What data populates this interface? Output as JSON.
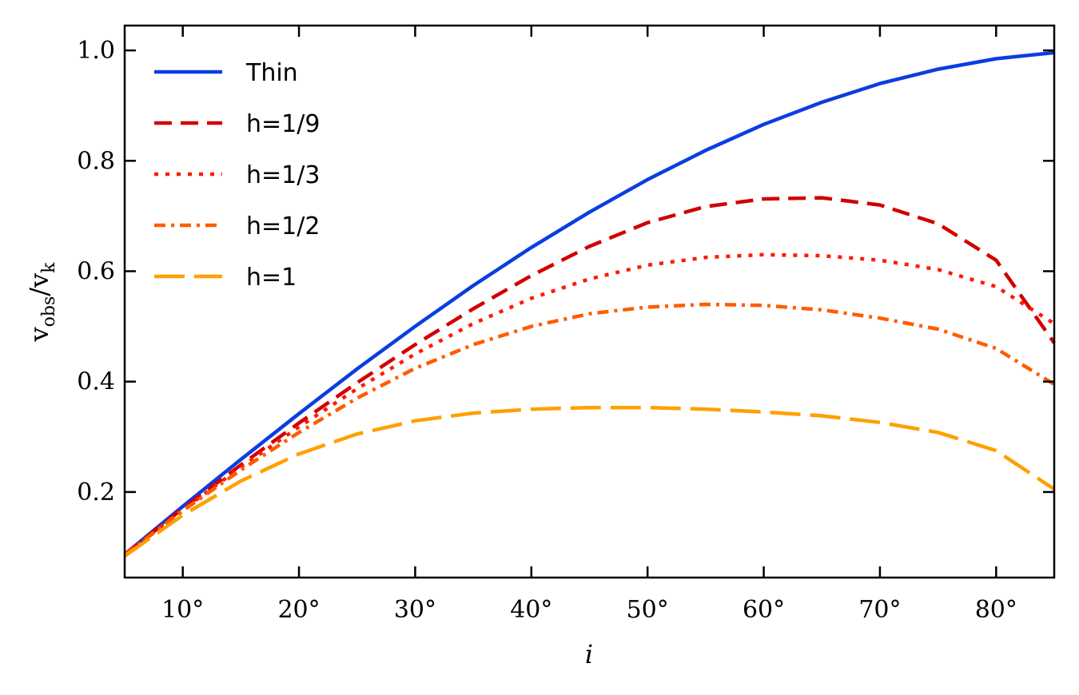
{
  "chart_data": {
    "type": "line",
    "title": "",
    "xlabel": "i",
    "ylabel_main": "v",
    "ylabel_sub1": "obs",
    "ylabel_slash": "/",
    "ylabel_sub2": "k",
    "xlim": [
      5,
      85
    ],
    "ylim": [
      0.045,
      1.045
    ],
    "x_ticks": [
      10,
      20,
      30,
      40,
      50,
      60,
      70,
      80
    ],
    "x_tick_labels": [
      "10°",
      "20°",
      "30°",
      "40°",
      "50°",
      "60°",
      "70°",
      "80°"
    ],
    "y_ticks": [
      0.2,
      0.4,
      0.6,
      0.8,
      1.0
    ],
    "y_tick_labels": [
      "0.2",
      "0.4",
      "0.6",
      "0.8",
      "1.0"
    ],
    "legend_position": "top-left",
    "grid": false,
    "x": [
      5,
      10,
      15,
      20,
      25,
      30,
      35,
      40,
      45,
      50,
      55,
      60,
      65,
      70,
      75,
      80,
      85
    ],
    "series": [
      {
        "name": "Thin",
        "color": "#0a3ee0",
        "style": "solid",
        "values": [
          0.087,
          0.174,
          0.259,
          0.342,
          0.423,
          0.5,
          0.574,
          0.643,
          0.707,
          0.766,
          0.819,
          0.866,
          0.906,
          0.94,
          0.966,
          0.985,
          0.996
        ]
      },
      {
        "name": "h=1/9",
        "color": "#d10000",
        "style": "dashed",
        "values": [
          0.087,
          0.17,
          0.249,
          0.325,
          0.398,
          0.467,
          0.532,
          0.592,
          0.645,
          0.688,
          0.717,
          0.731,
          0.733,
          0.72,
          0.686,
          0.62,
          0.47
        ]
      },
      {
        "name": "h=1/3",
        "color": "#ff1a00",
        "style": "dotted",
        "values": [
          0.086,
          0.168,
          0.245,
          0.318,
          0.387,
          0.45,
          0.505,
          0.551,
          0.586,
          0.611,
          0.625,
          0.63,
          0.628,
          0.62,
          0.603,
          0.572,
          0.505
        ]
      },
      {
        "name": "h=1/2",
        "color": "#ff5c00",
        "style": "dashdot",
        "values": [
          0.086,
          0.166,
          0.24,
          0.308,
          0.37,
          0.424,
          0.467,
          0.5,
          0.523,
          0.535,
          0.54,
          0.538,
          0.53,
          0.515,
          0.495,
          0.46,
          0.395
        ]
      },
      {
        "name": "h=1",
        "color": "#ffa000",
        "style": "longdash",
        "values": [
          0.084,
          0.158,
          0.22,
          0.269,
          0.305,
          0.329,
          0.343,
          0.35,
          0.353,
          0.353,
          0.35,
          0.345,
          0.338,
          0.326,
          0.308,
          0.275,
          0.205
        ]
      }
    ]
  }
}
